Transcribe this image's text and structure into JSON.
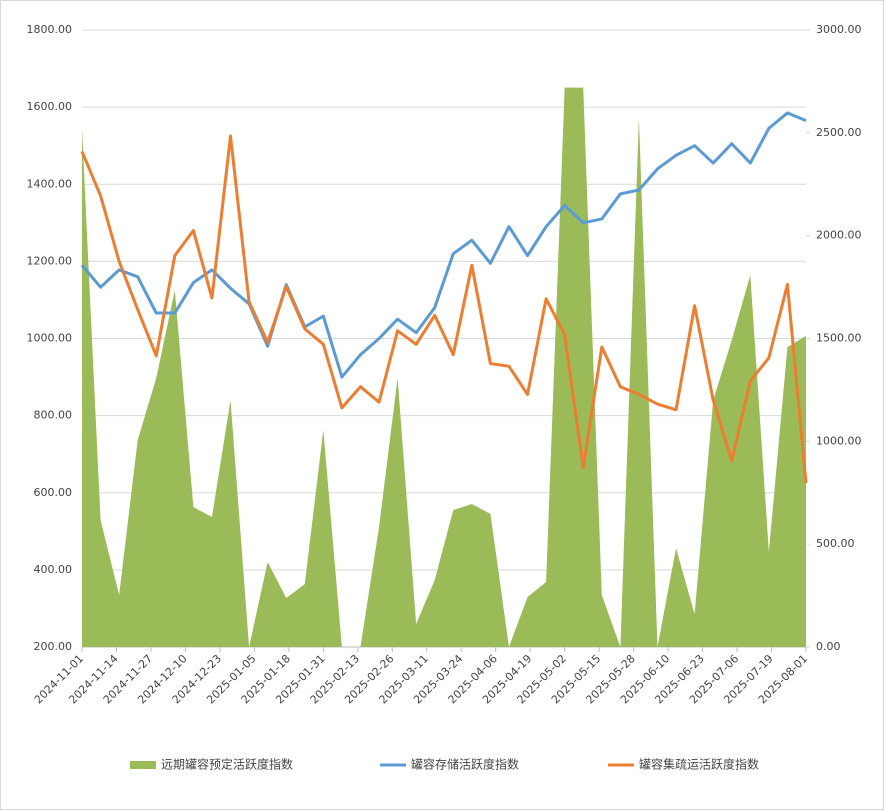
{
  "chart_data": {
    "type": "combo",
    "x": [
      "2024-11-01",
      "2024-11-08",
      "2024-11-15",
      "2024-11-22",
      "2024-11-29",
      "2024-12-06",
      "2024-12-13",
      "2024-12-20",
      "2024-12-27",
      "2025-01-03",
      "2025-01-10",
      "2025-01-17",
      "2025-01-24",
      "2025-01-31",
      "2025-02-07",
      "2025-02-14",
      "2025-02-21",
      "2025-02-28",
      "2025-03-07",
      "2025-03-14",
      "2025-03-21",
      "2025-03-28",
      "2025-04-04",
      "2025-04-11",
      "2025-04-18",
      "2025-04-25",
      "2025-05-02",
      "2025-05-09",
      "2025-05-16",
      "2025-05-23",
      "2025-05-30",
      "2025-06-06",
      "2025-06-13",
      "2025-06-20",
      "2025-06-27",
      "2025-07-04",
      "2025-07-11",
      "2025-07-18",
      "2025-07-25",
      "2025-08-01"
    ],
    "xlim": [
      "2024-11-01",
      "2025-08-01"
    ],
    "xticks": [
      "2024-11-01",
      "2024-11-14",
      "2024-11-27",
      "2024-12-10",
      "2024-12-23",
      "2025-01-05",
      "2025-01-18",
      "2025-01-31",
      "2025-02-13",
      "2025-02-26",
      "2025-03-11",
      "2025-03-24",
      "2025-04-06",
      "2025-04-19",
      "2025-05-02",
      "2025-05-15",
      "2025-05-28",
      "2025-06-10",
      "2025-06-23",
      "2025-07-06",
      "2025-07-19",
      "2025-08-01"
    ],
    "ylim": [
      200,
      1800
    ],
    "yticks": [
      {
        "value": 200,
        "label": "200.00"
      },
      {
        "value": 400,
        "label": "400.00"
      },
      {
        "value": 600,
        "label": "600.00"
      },
      {
        "value": 800,
        "label": "800.00"
      },
      {
        "value": 1000,
        "label": "1000.00"
      },
      {
        "value": 1200,
        "label": "1200.00"
      },
      {
        "value": 1400,
        "label": "1400.00"
      },
      {
        "value": 1600,
        "label": "1600.00"
      },
      {
        "value": 1800,
        "label": "1800.00"
      }
    ],
    "y2lim": [
      0,
      3000
    ],
    "y2ticks": [
      {
        "value": 0,
        "label": "0.00"
      },
      {
        "value": 500,
        "label": "500.00"
      },
      {
        "value": 1000,
        "label": "1000.00"
      },
      {
        "value": 1500,
        "label": "1500.00"
      },
      {
        "value": 2000,
        "label": "2000.00"
      },
      {
        "value": 2500,
        "label": "2500.00"
      },
      {
        "value": 3000,
        "label": "3000.00"
      }
    ],
    "grid": true,
    "legend": "bottom",
    "series": [
      {
        "name": "远期罐容预定活跃度指数",
        "type": "area",
        "axis": "y2",
        "color": "#9bbb59",
        "values": [
          2520,
          617,
          253,
          1006,
          1308,
          1735,
          680,
          632,
          1200,
          0,
          413,
          238,
          306,
          1055,
          0,
          0,
          583,
          1308,
          112,
          326,
          666,
          695,
          647,
          0,
          243,
          316,
          2720,
          2720,
          253,
          0,
          2572,
          0,
          481,
          160,
          1200,
          1492,
          1808,
          462,
          1458,
          1512
        ]
      },
      {
        "name": "罐容存储活跃度指数",
        "type": "line",
        "axis": "y",
        "color": "#5b9bd5",
        "values": [
          1190,
          1133,
          1178,
          1160,
          1066,
          1066,
          1145,
          1178,
          1130,
          1090,
          980,
          1140,
          1030,
          1058,
          900,
          958,
          1000,
          1050,
          1015,
          1080,
          1220,
          1255,
          1195,
          1290,
          1215,
          1290,
          1345,
          1300,
          1310,
          1375,
          1385,
          1440,
          1475,
          1500,
          1455,
          1505,
          1455,
          1545,
          1585,
          1565
        ]
      },
      {
        "name": "罐容集疏运活跃度指数",
        "type": "line",
        "axis": "y",
        "color": "#ed7d31",
        "values": [
          1485,
          1370,
          1200,
          1075,
          955,
          1215,
          1280,
          1105,
          1525,
          1095,
          990,
          1135,
          1025,
          985,
          820,
          875,
          835,
          1020,
          985,
          1060,
          958,
          1190,
          935,
          928,
          855,
          1103,
          1010,
          665,
          978,
          875,
          855,
          830,
          815,
          1085,
          840,
          683,
          890,
          950,
          1140,
          625
        ]
      }
    ]
  }
}
